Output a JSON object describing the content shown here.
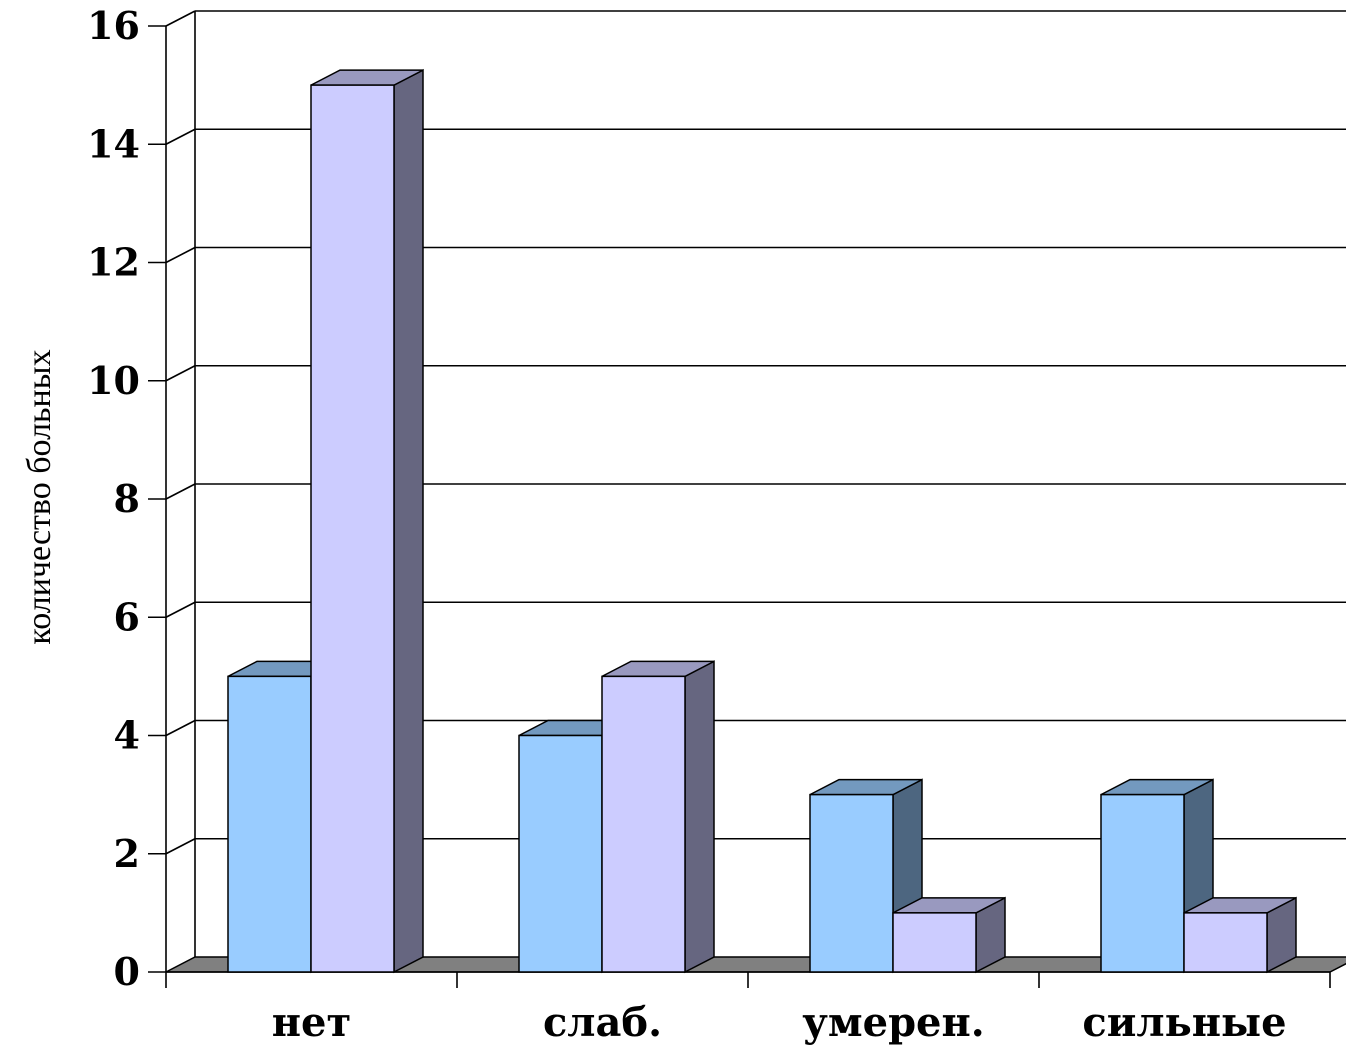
{
  "chart_data": {
    "type": "bar",
    "style": "3d-clustered-column",
    "categories": [
      "нет",
      "слаб.",
      "умерен.",
      "сильные"
    ],
    "series": [
      {
        "values": [
          5,
          4,
          3,
          3
        ],
        "color": "#99ccff"
      },
      {
        "values": [
          15,
          5,
          1,
          1
        ],
        "color": "#ccccff"
      }
    ],
    "ylabel": "количество больных",
    "xlabel": "",
    "ylim": [
      0,
      16
    ],
    "yticks": [
      0,
      2,
      4,
      6,
      8,
      10,
      12,
      14,
      16
    ],
    "grid": true,
    "legend": "none"
  }
}
